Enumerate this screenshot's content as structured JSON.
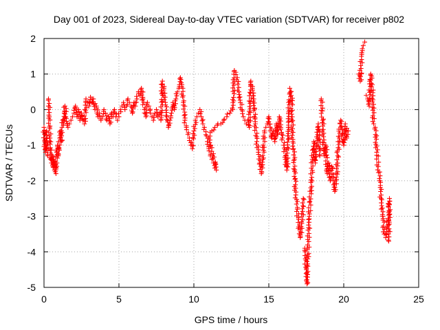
{
  "chart_data": {
    "type": "scatter",
    "title": "Day 001 of 2023, Sidereal Day-to-day VTEC variation (SDTVAR) for receiver p802",
    "xlabel": "GPS time / hours",
    "ylabel": "SDTVAR / TECUs",
    "xlim": [
      0,
      25
    ],
    "ylim": [
      -5,
      2
    ],
    "xticks": [
      0,
      5,
      10,
      15,
      20,
      25
    ],
    "yticks": [
      -5,
      -4,
      -3,
      -2,
      -1,
      0,
      1,
      2
    ],
    "grid": true,
    "marker": "plus",
    "color": "#ff0000",
    "series": [
      {
        "name": "SDTVAR",
        "points": [
          [
            0.0,
            -0.5
          ],
          [
            0.05,
            -0.9
          ],
          [
            0.1,
            -1.2
          ],
          [
            0.15,
            -0.6
          ],
          [
            0.2,
            -1.0
          ],
          [
            0.25,
            -1.3
          ],
          [
            0.3,
            0.3
          ],
          [
            0.35,
            -0.2
          ],
          [
            0.4,
            -0.8
          ],
          [
            0.45,
            -1.4
          ],
          [
            0.5,
            -1.5
          ],
          [
            0.55,
            -1.3
          ],
          [
            0.6,
            -1.6
          ],
          [
            0.65,
            -1.4
          ],
          [
            0.7,
            -1.7
          ],
          [
            0.75,
            -1.5
          ],
          [
            0.8,
            -1.8
          ],
          [
            0.85,
            -1.2
          ],
          [
            0.9,
            -1.0
          ],
          [
            0.95,
            -1.3
          ],
          [
            1.0,
            -1.1
          ],
          [
            1.05,
            -0.8
          ],
          [
            1.1,
            -0.6
          ],
          [
            1.15,
            -0.9
          ],
          [
            1.2,
            -0.5
          ],
          [
            1.25,
            -0.3
          ],
          [
            1.3,
            -0.4
          ],
          [
            1.35,
            -0.1
          ],
          [
            1.4,
            0.1
          ],
          [
            1.45,
            -0.2
          ],
          [
            1.6,
            -0.5
          ],
          [
            1.7,
            -0.4
          ],
          [
            1.8,
            -0.3
          ],
          [
            1.9,
            -0.2
          ],
          [
            2.0,
            -0.1
          ],
          [
            2.1,
            0.1
          ],
          [
            2.2,
            -0.2
          ],
          [
            2.3,
            0.0
          ],
          [
            2.4,
            -0.3
          ],
          [
            2.5,
            -0.1
          ],
          [
            2.6,
            -0.3
          ],
          [
            2.7,
            -0.4
          ],
          [
            2.8,
            0.3
          ],
          [
            2.9,
            0.2
          ],
          [
            3.0,
            0.1
          ],
          [
            3.1,
            0.35
          ],
          [
            3.2,
            0.2
          ],
          [
            3.3,
            0.3
          ],
          [
            3.4,
            0.0
          ],
          [
            3.5,
            0.1
          ],
          [
            3.6,
            -0.2
          ],
          [
            3.7,
            -0.1
          ],
          [
            3.8,
            -0.3
          ],
          [
            3.9,
            -0.2
          ],
          [
            4.0,
            0.0
          ],
          [
            4.1,
            -0.1
          ],
          [
            4.2,
            -0.3
          ],
          [
            4.3,
            -0.2
          ],
          [
            4.4,
            -0.4
          ],
          [
            4.5,
            -0.1
          ],
          [
            4.6,
            -0.2
          ],
          [
            4.7,
            0.0
          ],
          [
            4.8,
            -0.2
          ],
          [
            4.9,
            -0.3
          ],
          [
            5.0,
            -0.2
          ],
          [
            5.1,
            0.0
          ],
          [
            5.2,
            0.1
          ],
          [
            5.3,
            0.2
          ],
          [
            5.4,
            0.0
          ],
          [
            5.5,
            0.1
          ],
          [
            5.6,
            0.3
          ],
          [
            5.7,
            0.2
          ],
          [
            5.8,
            0.1
          ],
          [
            5.9,
            -0.1
          ],
          [
            6.0,
            0.2
          ],
          [
            6.1,
            0.1
          ],
          [
            6.2,
            0.3
          ],
          [
            6.3,
            0.5
          ],
          [
            6.4,
            0.4
          ],
          [
            6.5,
            0.6
          ],
          [
            6.6,
            0.3
          ],
          [
            6.7,
            0.0
          ],
          [
            6.8,
            -0.2
          ],
          [
            6.9,
            0.2
          ],
          [
            7.0,
            0.1
          ],
          [
            7.1,
            -0.1
          ],
          [
            7.2,
            -0.2
          ],
          [
            7.3,
            -0.3
          ],
          [
            7.4,
            -0.1
          ],
          [
            7.5,
            0.0
          ],
          [
            7.6,
            -0.2
          ],
          [
            7.7,
            -0.1
          ],
          [
            7.8,
            -0.3
          ],
          [
            7.9,
            0.8
          ],
          [
            8.0,
            0.6
          ],
          [
            8.1,
            0.2
          ],
          [
            8.2,
            -0.2
          ],
          [
            8.3,
            -0.5
          ],
          [
            8.4,
            -0.3
          ],
          [
            8.5,
            -0.1
          ],
          [
            8.6,
            0.2
          ],
          [
            8.7,
            0.0
          ],
          [
            8.8,
            0.3
          ],
          [
            8.9,
            0.5
          ],
          [
            9.0,
            0.6
          ],
          [
            9.1,
            0.9
          ],
          [
            9.2,
            0.7
          ],
          [
            9.3,
            0.2
          ],
          [
            9.4,
            -0.3
          ],
          [
            9.5,
            -0.5
          ],
          [
            9.6,
            -0.7
          ],
          [
            9.7,
            -0.8
          ],
          [
            9.8,
            -1.0
          ],
          [
            9.9,
            -1.1
          ],
          [
            10.0,
            -0.6
          ],
          [
            10.1,
            -0.3
          ],
          [
            10.2,
            -0.2
          ],
          [
            10.3,
            -0.1
          ],
          [
            10.4,
            0.0
          ],
          [
            10.5,
            -0.2
          ],
          [
            10.6,
            -0.4
          ],
          [
            10.7,
            -0.5
          ],
          [
            10.8,
            -0.7
          ],
          [
            10.9,
            -0.9
          ],
          [
            11.0,
            -1.1
          ],
          [
            11.1,
            -1.3
          ],
          [
            11.2,
            -1.4
          ],
          [
            11.3,
            -1.5
          ],
          [
            11.4,
            -1.5
          ],
          [
            11.5,
            -1.7
          ],
          [
            11.0,
            -0.8
          ],
          [
            11.2,
            -0.6
          ],
          [
            11.4,
            -0.5
          ],
          [
            11.6,
            -0.4
          ],
          [
            11.8,
            -0.4
          ],
          [
            12.0,
            -0.3
          ],
          [
            12.2,
            -0.2
          ],
          [
            12.4,
            -0.1
          ],
          [
            12.6,
            0.0
          ],
          [
            12.7,
            1.1
          ],
          [
            12.8,
            1.05
          ],
          [
            12.9,
            0.9
          ],
          [
            13.0,
            0.5
          ],
          [
            13.1,
            0.2
          ],
          [
            13.2,
            0.0
          ],
          [
            13.3,
            -0.2
          ],
          [
            13.4,
            -0.3
          ],
          [
            13.5,
            -0.4
          ],
          [
            13.6,
            -0.3
          ],
          [
            13.7,
            -0.5
          ],
          [
            13.8,
            0.8
          ],
          [
            13.9,
            0.6
          ],
          [
            14.0,
            0.3
          ],
          [
            14.1,
            -0.4
          ],
          [
            14.2,
            -0.9
          ],
          [
            14.3,
            -1.2
          ],
          [
            14.4,
            -1.5
          ],
          [
            14.5,
            -1.8
          ],
          [
            14.6,
            -1.4
          ],
          [
            14.7,
            -0.6
          ],
          [
            14.8,
            -0.5
          ],
          [
            14.9,
            -0.4
          ],
          [
            15.0,
            -0.2
          ],
          [
            15.1,
            -0.5
          ],
          [
            15.2,
            -0.8
          ],
          [
            15.3,
            -0.6
          ],
          [
            15.4,
            -0.9
          ],
          [
            15.5,
            -0.4
          ],
          [
            15.6,
            -0.7
          ],
          [
            15.7,
            -0.2
          ],
          [
            15.8,
            -0.5
          ],
          [
            15.9,
            -0.8
          ],
          [
            16.0,
            -1.0
          ],
          [
            16.1,
            -1.4
          ],
          [
            16.2,
            -1.7
          ],
          [
            16.3,
            -0.5
          ],
          [
            16.4,
            0.6
          ],
          [
            16.5,
            0.4
          ],
          [
            16.6,
            -0.9
          ],
          [
            16.7,
            -1.4
          ],
          [
            16.8,
            -2.4
          ],
          [
            16.9,
            -2.8
          ],
          [
            17.0,
            -3.3
          ],
          [
            17.1,
            -3.6
          ],
          [
            17.2,
            -3.2
          ],
          [
            17.3,
            -2.5
          ],
          [
            17.4,
            -3.9
          ],
          [
            17.5,
            -4.5
          ],
          [
            17.55,
            -4.9
          ],
          [
            17.6,
            -4.2
          ],
          [
            17.7,
            -3.0
          ],
          [
            17.8,
            -2.2
          ],
          [
            17.9,
            -1.4
          ],
          [
            18.0,
            -0.9
          ],
          [
            18.1,
            -1.5
          ],
          [
            18.2,
            -1.0
          ],
          [
            18.3,
            -0.4
          ],
          [
            18.4,
            -1.3
          ],
          [
            18.5,
            0.3
          ],
          [
            18.6,
            -0.3
          ],
          [
            18.7,
            -1.3
          ],
          [
            18.8,
            -1.0
          ],
          [
            18.9,
            -1.8
          ],
          [
            19.0,
            -1.5
          ],
          [
            19.1,
            -2.0
          ],
          [
            19.2,
            -1.6
          ],
          [
            19.3,
            -2.0
          ],
          [
            19.4,
            -2.3
          ],
          [
            19.5,
            -1.9
          ],
          [
            19.6,
            -1.3
          ],
          [
            19.7,
            -0.8
          ],
          [
            19.8,
            -0.3
          ],
          [
            19.9,
            -0.7
          ],
          [
            20.0,
            -1.0
          ],
          [
            20.1,
            -0.4
          ],
          [
            20.2,
            -0.8
          ],
          [
            20.3,
            -0.6
          ],
          [
            21.0,
            1.0
          ],
          [
            21.1,
            0.8
          ],
          [
            21.2,
            1.6
          ],
          [
            21.3,
            1.8
          ],
          [
            21.4,
            1.9
          ],
          [
            21.5,
            0.4
          ],
          [
            21.6,
            0.3
          ],
          [
            21.7,
            0.1
          ],
          [
            21.8,
            1.0
          ],
          [
            21.9,
            0.7
          ],
          [
            22.0,
            -0.4
          ],
          [
            22.1,
            -0.5
          ],
          [
            22.2,
            -1.2
          ],
          [
            22.3,
            -1.6
          ],
          [
            22.4,
            -2.0
          ],
          [
            22.5,
            -2.5
          ],
          [
            22.6,
            -3.0
          ],
          [
            22.7,
            -3.5
          ],
          [
            22.8,
            -3.6
          ],
          [
            22.9,
            -3.3
          ],
          [
            23.0,
            -2.9
          ],
          [
            23.05,
            -2.5
          ],
          [
            23.0,
            -3.7
          ]
        ]
      }
    ]
  }
}
